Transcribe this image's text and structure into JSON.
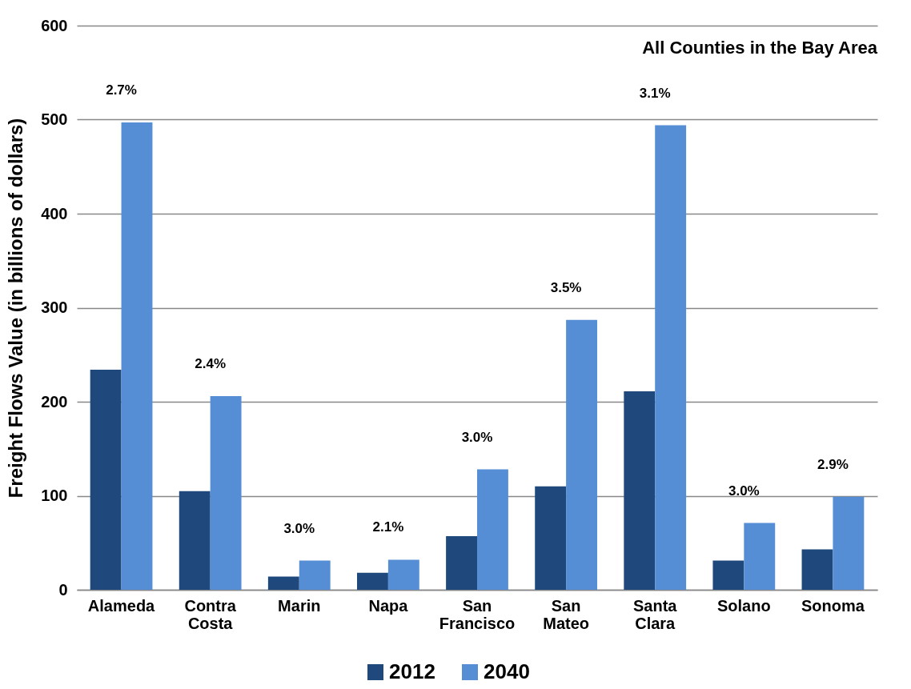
{
  "chart_data": {
    "type": "bar",
    "title": "All Counties in the Bay Area",
    "ylabel": "Freight Flows Value (in billions of dollars)",
    "categories": [
      "Alameda",
      "Contra Costa",
      "Marin",
      "Napa",
      "San Francisco",
      "San Mateo",
      "Santa Clara",
      "Solano",
      "Sonoma"
    ],
    "series": [
      {
        "name": "2012",
        "color": "#1f497d",
        "values": [
          234,
          105,
          14,
          18,
          57,
          110,
          211,
          31,
          43
        ]
      },
      {
        "name": "2040",
        "color": "#558ed5",
        "values": [
          497,
          206,
          31,
          32,
          128,
          287,
          494,
          71,
          99
        ]
      }
    ],
    "ylim": [
      0,
      600
    ],
    "yticks": [
      0,
      100,
      200,
      300,
      400,
      500,
      600
    ],
    "grid": "y",
    "legend": "bottom",
    "annotations": [
      "2.7%",
      "2.4%",
      "3.0%",
      "2.1%",
      "3.0%",
      "3.5%",
      "3.1%",
      "3.0%",
      "2.9%"
    ]
  }
}
